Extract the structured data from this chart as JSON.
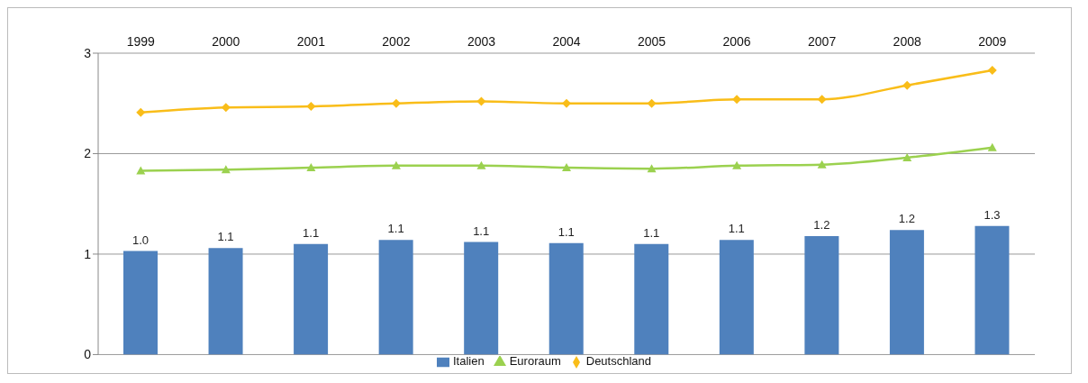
{
  "chart_data": {
    "type": "bar",
    "categories": [
      "1999",
      "2000",
      "2001",
      "2002",
      "2003",
      "2004",
      "2005",
      "2006",
      "2007",
      "2008",
      "2009"
    ],
    "series": [
      {
        "name": "Italien",
        "color": "#4f81bd",
        "values": [
          1.03,
          1.06,
          1.1,
          1.14,
          1.12,
          1.11,
          1.1,
          1.14,
          1.18,
          1.24,
          1.28
        ],
        "value_labels": [
          "1.0",
          "1.1",
          "1.1",
          "1.1",
          "1.1",
          "1.1",
          "1.1",
          "1.1",
          "1.2",
          "1.2",
          "1.3"
        ]
      },
      {
        "name": "Euroraum",
        "type": "line",
        "color": "#9bd14f",
        "marker": "triangle",
        "values": [
          1.83,
          1.84,
          1.86,
          1.88,
          1.88,
          1.86,
          1.85,
          1.88,
          1.89,
          1.96,
          2.06
        ]
      },
      {
        "name": "Deutschland",
        "type": "line",
        "color": "#f9bd19",
        "marker": "diamond",
        "values": [
          2.41,
          2.46,
          2.47,
          2.5,
          2.52,
          2.5,
          2.5,
          2.54,
          2.54,
          2.68,
          2.83
        ]
      }
    ],
    "ylim": [
      0,
      3
    ],
    "yticks": [
      0,
      1,
      2,
      3
    ],
    "grid": "y",
    "legend": "bottom"
  }
}
